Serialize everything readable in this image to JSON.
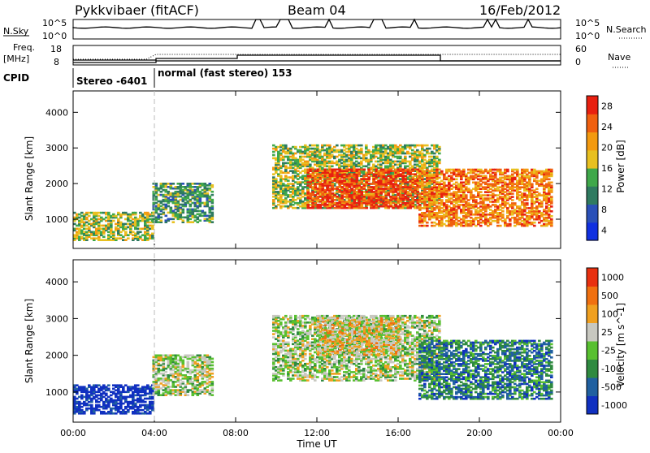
{
  "header": {
    "station": "Pykkvibaer (fitACF)",
    "beam": "Beam 04",
    "date": "16/Feb/2012"
  },
  "panels": {
    "nsky_label": "N.Sky",
    "nsky_ticks": [
      "10^5",
      "10^0"
    ],
    "nsky_right_ticks": [
      "10^5",
      "10^0"
    ],
    "nsearch_label": "N.Search",
    "freq_label_line1": "Freq.",
    "freq_label_line2": "[MHz]",
    "freq_ticks": [
      "18",
      "8"
    ],
    "nave_label": "Nave",
    "nave_ticks": [
      "60",
      "0"
    ],
    "cpid_label": "CPID",
    "cpid_segments": [
      {
        "label": "Stereo -6401",
        "start_hour": 0,
        "end_hour": 4
      },
      {
        "label": "normal (fast stereo) 153",
        "start_hour": 4,
        "end_hour": 24
      }
    ]
  },
  "colors": {
    "power_scale": [
      "#1030e0",
      "#2a50b8",
      "#2f7a60",
      "#3fa84a",
      "#e8c020",
      "#f39a10",
      "#f06010",
      "#e82010"
    ],
    "velocity_scale": [
      "#1030c0",
      "#2060a0",
      "#2f8a40",
      "#58c030",
      "#c8c8c0",
      "#f0a020",
      "#f07010",
      "#e83010"
    ],
    "frame": "#000000"
  },
  "chart_data": [
    {
      "type": "heatmap",
      "name_key": "power",
      "xlabel": "",
      "ylabel": "Slant Range [km]",
      "colorbar_label": "Power [dB]",
      "colorbar_ticks": [
        "28",
        "24",
        "20",
        "16",
        "12",
        "8",
        "4"
      ],
      "colorbar_range": [
        0,
        30
      ],
      "xlim": [
        0,
        24
      ],
      "ylim": [
        180,
        4600
      ],
      "yticks": [
        "4000",
        "3000",
        "2000",
        "1000"
      ],
      "regions": [
        {
          "t0": 0.0,
          "t1": 3.9,
          "r0": 400,
          "r1": 1200,
          "level": 4
        },
        {
          "t0": 3.9,
          "t1": 6.8,
          "r0": 900,
          "r1": 2000,
          "level": 3
        },
        {
          "t0": 9.8,
          "t1": 18.0,
          "r0": 1300,
          "r1": 3100,
          "level": 4
        },
        {
          "t0": 11.5,
          "t1": 17.0,
          "r0": 1300,
          "r1": 2400,
          "level": 7
        },
        {
          "t0": 17.0,
          "t1": 23.6,
          "r0": 800,
          "r1": 2400,
          "level": 6
        }
      ]
    },
    {
      "type": "heatmap",
      "name_key": "velocity",
      "xlabel": "Time UT",
      "ylabel": "Slant Range [km]",
      "colorbar_label": "Velocity [m s^-1]",
      "colorbar_ticks": [
        "1000",
        "500",
        "100",
        "25",
        "-25",
        "-100",
        "-500",
        "-1000"
      ],
      "xlim": [
        0,
        24
      ],
      "ylim": [
        180,
        4600
      ],
      "yticks": [
        "4000",
        "3000",
        "2000",
        "1000"
      ],
      "xticks": [
        "00:00",
        "04:00",
        "08:00",
        "12:00",
        "16:00",
        "20:00",
        "00:00"
      ],
      "regions": [
        {
          "t0": 0.0,
          "t1": 3.9,
          "r0": 400,
          "r1": 1200,
          "level": 0
        },
        {
          "t0": 3.9,
          "t1": 6.8,
          "r0": 900,
          "r1": 2000,
          "level": 4
        },
        {
          "t0": 9.8,
          "t1": 18.0,
          "r0": 1300,
          "r1": 3100,
          "level": 4
        },
        {
          "t0": 12.0,
          "t1": 16.0,
          "r0": 2000,
          "r1": 3000,
          "level": 5
        },
        {
          "t0": 17.0,
          "t1": 23.6,
          "r0": 800,
          "r1": 2400,
          "level": 2
        }
      ]
    }
  ]
}
